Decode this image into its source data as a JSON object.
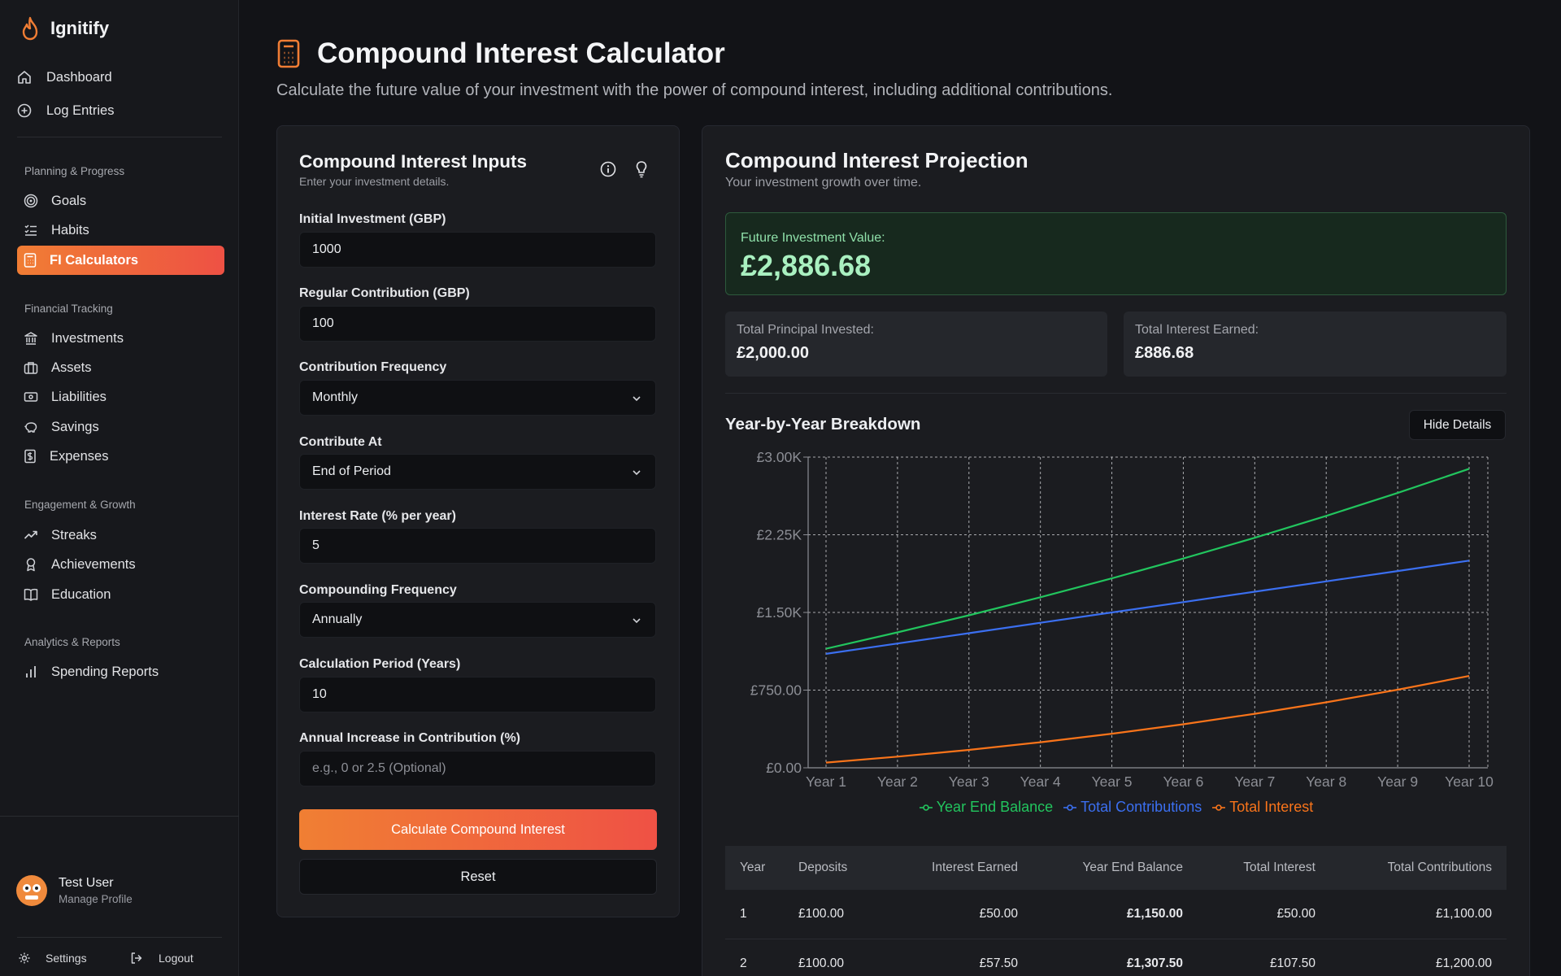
{
  "app": {
    "name": "Ignitify"
  },
  "sidebar": {
    "top_items": [
      {
        "label": "Dashboard",
        "icon": "home-icon"
      },
      {
        "label": "Log Entries",
        "icon": "plus-circle-icon"
      }
    ],
    "sections": [
      {
        "title": "Planning & Progress",
        "items": [
          {
            "label": "Goals",
            "icon": "target-icon"
          },
          {
            "label": "Habits",
            "icon": "checklist-icon"
          },
          {
            "label": "FI Calculators",
            "icon": "calculator-icon",
            "active": true
          }
        ]
      },
      {
        "title": "Financial Tracking",
        "items": [
          {
            "label": "Investments",
            "icon": "bank-icon"
          },
          {
            "label": "Assets",
            "icon": "briefcase-icon"
          },
          {
            "label": "Liabilities",
            "icon": "banknote-icon"
          },
          {
            "label": "Savings",
            "icon": "piggy-bank-icon"
          },
          {
            "label": "Expenses",
            "icon": "receipt-icon"
          }
        ]
      },
      {
        "title": "Engagement & Growth",
        "items": [
          {
            "label": "Streaks",
            "icon": "trending-up-icon"
          },
          {
            "label": "Achievements",
            "icon": "award-icon"
          },
          {
            "label": "Education",
            "icon": "book-icon"
          }
        ]
      },
      {
        "title": "Analytics & Reports",
        "items": [
          {
            "label": "Spending Reports",
            "icon": "bar-chart-icon"
          }
        ]
      }
    ],
    "user": {
      "name": "Test User",
      "sub": "Manage Profile"
    },
    "footer": {
      "settings": "Settings",
      "logout": "Logout"
    }
  },
  "page": {
    "title": "Compound Interest Calculator",
    "subtitle": "Calculate the future value of your investment with the power of compound interest, including additional contributions."
  },
  "inputs": {
    "title": "Compound Interest Inputs",
    "subtitle": "Enter your investment details.",
    "fields": [
      {
        "label": "Initial Investment (GBP)",
        "value": "1000",
        "type": "input"
      },
      {
        "label": "Regular Contribution (GBP)",
        "value": "100",
        "type": "input"
      },
      {
        "label": "Contribution Frequency",
        "value": "Monthly",
        "type": "select"
      },
      {
        "label": "Contribute At",
        "value": "End of Period",
        "type": "select"
      },
      {
        "label": "Interest Rate (% per year)",
        "value": "5",
        "type": "input"
      },
      {
        "label": "Compounding Frequency",
        "value": "Annually",
        "type": "select"
      },
      {
        "label": "Calculation Period (Years)",
        "value": "10",
        "type": "input"
      },
      {
        "label": "Annual Increase in Contribution (%)",
        "value": "",
        "placeholder": "e.g., 0 or 2.5 (Optional)",
        "type": "input"
      }
    ],
    "calculate_label": "Calculate Compound Interest",
    "reset_label": "Reset"
  },
  "projection": {
    "title": "Compound Interest Projection",
    "subtitle": "Your investment growth over time.",
    "future_label": "Future Investment Value:",
    "future_value": "£2,886.68",
    "principal_label": "Total Principal Invested:",
    "principal_value": "£2,000.00",
    "interest_label": "Total Interest Earned:",
    "interest_value": "£886.68",
    "breakdown_title": "Year-by-Year Breakdown",
    "hide_label": "Hide Details"
  },
  "colors": {
    "green": "#22c55e",
    "blue": "#3b6ff0",
    "orange": "#f9741a"
  },
  "chart_data": {
    "type": "line",
    "x": [
      "Year 1",
      "Year 2",
      "Year 3",
      "Year 4",
      "Year 5",
      "Year 6",
      "Year 7",
      "Year 8",
      "Year 9",
      "Year 10"
    ],
    "series": [
      {
        "name": "Year End Balance",
        "color": "#22c55e",
        "values": [
          1150,
          1307.5,
          1472.88,
          1646.52,
          1828.85,
          2020.29,
          2221.3,
          2432.37,
          2653.99,
          2886.68
        ]
      },
      {
        "name": "Total Contributions",
        "color": "#3b6ff0",
        "values": [
          1100,
          1200,
          1300,
          1400,
          1500,
          1600,
          1700,
          1800,
          1900,
          2000
        ]
      },
      {
        "name": "Total Interest",
        "color": "#f9741a",
        "values": [
          50,
          107.5,
          172.88,
          246.52,
          328.85,
          420.29,
          521.3,
          632.37,
          753.99,
          886.68
        ]
      }
    ],
    "yticks": [
      "£0.00",
      "£750.00",
      "£1.50K",
      "£2.25K",
      "£3.00K"
    ],
    "ylim": [
      0,
      3000
    ],
    "grid": true,
    "legend": "bottom"
  },
  "table": {
    "headers": [
      "Year",
      "Deposits",
      "Interest Earned",
      "Year End Balance",
      "Total Interest",
      "Total Contributions"
    ],
    "rows": [
      [
        "1",
        "£100.00",
        "£50.00",
        "£1,150.00",
        "£50.00",
        "£1,100.00"
      ],
      [
        "2",
        "£100.00",
        "£57.50",
        "£1,307.50",
        "£107.50",
        "£1,200.00"
      ]
    ]
  }
}
